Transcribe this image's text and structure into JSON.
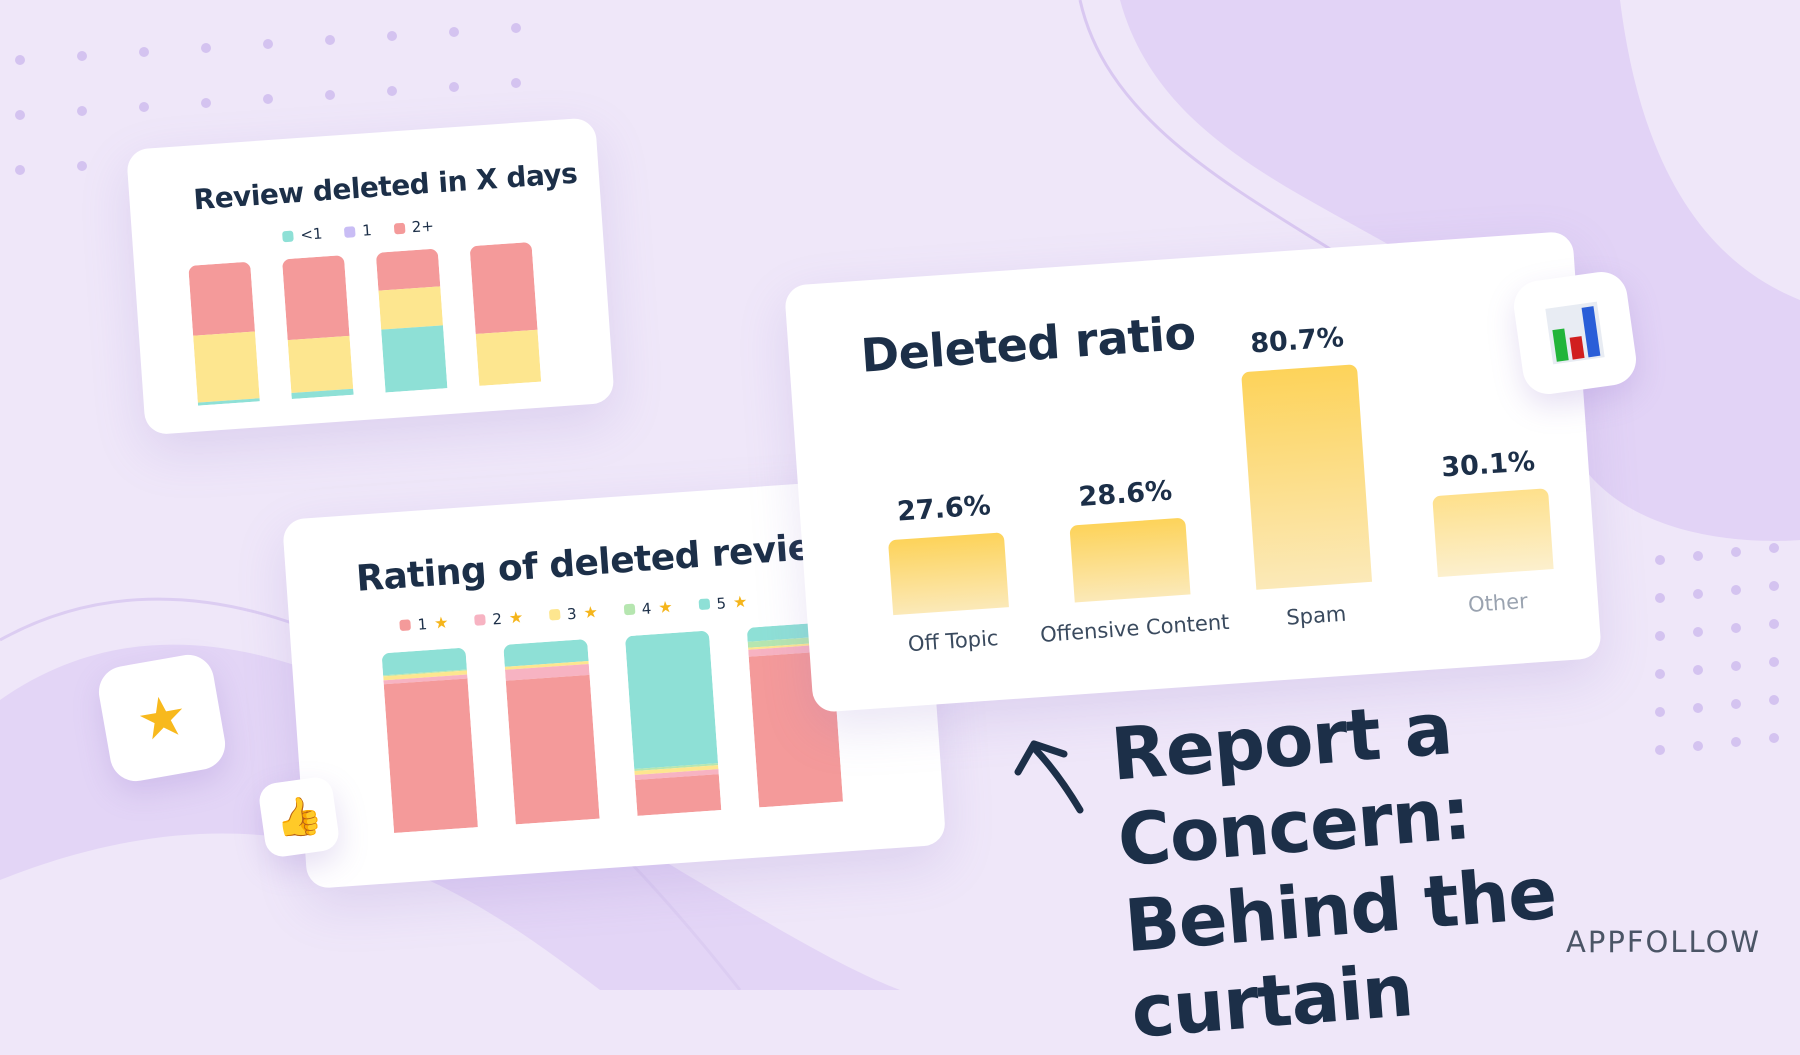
{
  "colors": {
    "background": "#efe7f9",
    "teal": "#8ee0d6",
    "purple": "#c9bdf5",
    "red": "#f49a9a",
    "yellow": "#fde68f",
    "pink": "#f7b3c2",
    "green": "#b6e6b0",
    "gold": "#fdd35a",
    "navy": "#1c2f48"
  },
  "headline": {
    "line1": "Report a Concern:",
    "line2": "Behind the curtain"
  },
  "brand": "APPFOLLOW",
  "icons": {
    "star": "glowing-star-icon",
    "thumbs": "thumbs-up-icon",
    "chart": "bar-chart-icon",
    "arrow": "arrow-up-left-icon"
  },
  "chart_data": [
    {
      "type": "bar",
      "stacked": true,
      "title": "Review deleted in X days",
      "legend": [
        {
          "name": "<1",
          "color": "#8ee0d6"
        },
        {
          "name": "1",
          "color": "#c9bdf5"
        },
        {
          "name": "2+",
          "color": "#f49a9a"
        }
      ],
      "series_shown": [
        {
          "color": "#8ee0d6",
          "values": [
            2,
            4,
            45,
            0
          ]
        },
        {
          "color": "#fde68f",
          "values": [
            48,
            38,
            28,
            37
          ]
        },
        {
          "color": "#f49a9a",
          "values": [
            50,
            58,
            27,
            63
          ]
        }
      ]
    },
    {
      "type": "bar",
      "stacked": true,
      "title": "Rating of deleted reviews",
      "legend": [
        {
          "name": "1",
          "color": "#f49a9a"
        },
        {
          "name": "2",
          "color": "#f7b3c2"
        },
        {
          "name": "3",
          "color": "#fde68f"
        },
        {
          "name": "4",
          "color": "#b6e6b0"
        },
        {
          "name": "5",
          "color": "#8ee0d6"
        }
      ],
      "series": [
        {
          "name": "1",
          "values": [
            83,
            80,
            20,
            84
          ]
        },
        {
          "name": "2",
          "values": [
            2,
            6,
            3,
            4
          ]
        },
        {
          "name": "3",
          "values": [
            2,
            2,
            2,
            1
          ]
        },
        {
          "name": "4",
          "values": [
            1,
            0,
            1,
            3
          ]
        },
        {
          "name": "5",
          "values": [
            12,
            12,
            74,
            8
          ]
        }
      ]
    },
    {
      "type": "bar",
      "title": "Deleted ratio",
      "categories": [
        "Off Topic",
        "Offensive Content",
        "Spam",
        "Other"
      ],
      "values": [
        27.6,
        28.6,
        80.7,
        30.1
      ],
      "labels": [
        "27.6%",
        "28.6%",
        "80.7%",
        "30.1%"
      ]
    }
  ]
}
